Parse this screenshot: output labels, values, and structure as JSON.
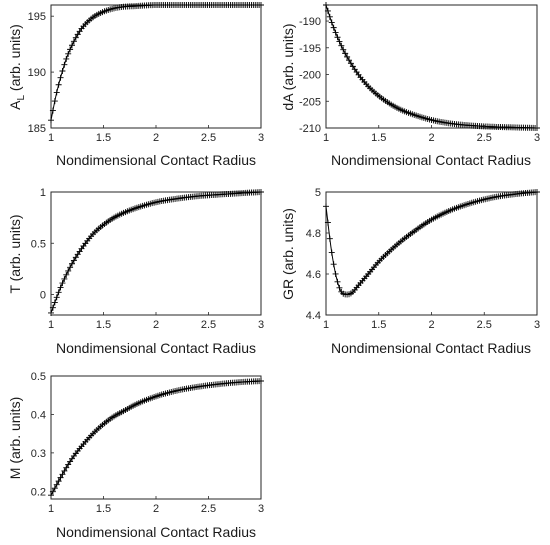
{
  "chart_data": [
    {
      "id": "AL",
      "type": "line",
      "marker": "+",
      "xlabel": "Nondimensional Contact Radius",
      "ylabel": "A",
      "ylabel_subscript": "L",
      "ylabel_suffix": " (arb. units)",
      "xlim": [
        1,
        3
      ],
      "ylim": [
        185,
        196
      ],
      "xticks": [
        1,
        1.5,
        2,
        2.5,
        3
      ],
      "yticks": [
        185,
        190,
        195
      ],
      "x": [
        1.0,
        1.05,
        1.1,
        1.15,
        1.2,
        1.25,
        1.3,
        1.4,
        1.5,
        1.6,
        1.7,
        1.8,
        2.0,
        2.2,
        2.5,
        2.8,
        3.0
      ],
      "y": [
        185.7,
        188.0,
        189.8,
        191.3,
        192.4,
        193.3,
        194.0,
        194.9,
        195.4,
        195.7,
        195.85,
        195.9,
        196.0,
        196.0,
        196.0,
        196.0,
        196.0
      ]
    },
    {
      "id": "dA",
      "type": "line",
      "marker": "+",
      "xlabel": "Nondimensional Contact Radius",
      "ylabel": "dA (arb. units)",
      "xlim": [
        1,
        3
      ],
      "ylim": [
        -210,
        -187
      ],
      "xticks": [
        1,
        1.5,
        2,
        2.5,
        3
      ],
      "yticks": [
        -190,
        -195,
        -200,
        -205,
        -210
      ],
      "x": [
        1.0,
        1.05,
        1.1,
        1.15,
        1.2,
        1.3,
        1.4,
        1.5,
        1.6,
        1.7,
        1.8,
        2.0,
        2.2,
        2.5,
        2.8,
        3.0
      ],
      "y": [
        -187.0,
        -190.0,
        -192.6,
        -194.8,
        -196.7,
        -199.8,
        -202.2,
        -204.0,
        -205.4,
        -206.5,
        -207.3,
        -208.5,
        -209.2,
        -209.7,
        -209.9,
        -210.0
      ]
    },
    {
      "id": "T",
      "type": "line",
      "marker": "+",
      "xlabel": "Nondimensional Contact Radius",
      "ylabel": "T (arb. units)",
      "xlim": [
        1,
        3
      ],
      "ylim": [
        -0.2,
        1.0
      ],
      "xticks": [
        1,
        1.5,
        2,
        2.5,
        3
      ],
      "yticks": [
        0,
        0.5,
        1
      ],
      "x": [
        1.0,
        1.05,
        1.1,
        1.2,
        1.3,
        1.4,
        1.5,
        1.6,
        1.7,
        1.8,
        2.0,
        2.2,
        2.4,
        2.6,
        2.8,
        3.0
      ],
      "y": [
        -0.18,
        -0.04,
        0.09,
        0.3,
        0.46,
        0.59,
        0.68,
        0.75,
        0.8,
        0.84,
        0.9,
        0.935,
        0.96,
        0.975,
        0.988,
        1.0
      ]
    },
    {
      "id": "GR",
      "type": "line",
      "marker": "+",
      "xlabel": "Nondimensional Contact Radius",
      "ylabel": "GR (arb. units)",
      "xlim": [
        1,
        3
      ],
      "ylim": [
        4.4,
        5.0
      ],
      "xticks": [
        1,
        1.5,
        2,
        2.5,
        3
      ],
      "yticks": [
        4.4,
        4.6,
        4.8,
        5
      ],
      "x": [
        1.0,
        1.05,
        1.1,
        1.15,
        1.2,
        1.25,
        1.3,
        1.4,
        1.5,
        1.6,
        1.7,
        1.8,
        2.0,
        2.2,
        2.4,
        2.6,
        2.8,
        3.0
      ],
      "y": [
        4.93,
        4.72,
        4.58,
        4.51,
        4.5,
        4.51,
        4.54,
        4.6,
        4.66,
        4.71,
        4.755,
        4.795,
        4.865,
        4.915,
        4.95,
        4.975,
        4.99,
        5.0
      ]
    },
    {
      "id": "M",
      "type": "line",
      "marker": "+",
      "xlabel": "Nondimensional Contact Radius",
      "ylabel": "M (arb. units)",
      "xlim": [
        1,
        3
      ],
      "ylim": [
        0.18,
        0.5
      ],
      "xticks": [
        1,
        1.5,
        2,
        2.5,
        3
      ],
      "yticks": [
        0.2,
        0.3,
        0.4,
        0.5
      ],
      "x": [
        1.0,
        1.05,
        1.1,
        1.2,
        1.3,
        1.4,
        1.5,
        1.6,
        1.7,
        1.8,
        2.0,
        2.2,
        2.4,
        2.6,
        2.8,
        3.0
      ],
      "y": [
        0.19,
        0.215,
        0.24,
        0.285,
        0.32,
        0.35,
        0.375,
        0.395,
        0.41,
        0.425,
        0.447,
        0.462,
        0.472,
        0.479,
        0.484,
        0.487
      ]
    }
  ]
}
